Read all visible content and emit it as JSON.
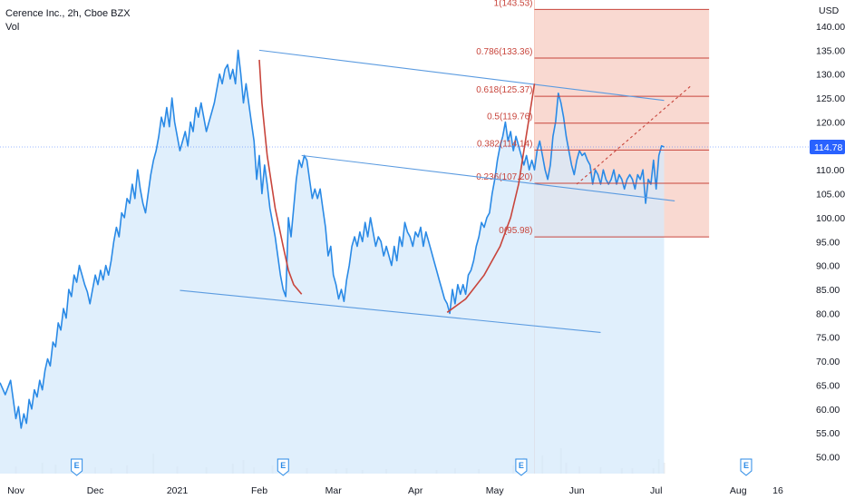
{
  "header": {
    "symbol_line": "Cerence Inc., 2h, Cboe BZX",
    "volume_label": "Vol"
  },
  "currency_label": "USD",
  "last_price_label": "114.78",
  "colors": {
    "price_line": "#2a8ae6",
    "area_fill": "#d6e9fb",
    "trend_lines": "#5b9be0",
    "cup_arc": "#c8453c",
    "fib_zone": "#f6c9bd",
    "fib_line": "#c8453c",
    "price_badge": "#2962ff",
    "volume_bar": "#ececec"
  },
  "chart_data": {
    "type": "line",
    "title": "Cerence Inc., 2h, Cboe BZX",
    "ylabel": "USD",
    "ylim": [
      46.5,
      145.5
    ],
    "y_ticks": [
      50,
      55,
      60,
      65,
      70,
      75,
      80,
      85,
      90,
      95,
      100,
      105,
      110,
      115,
      120,
      125,
      130,
      135,
      140
    ],
    "y_tick_labels": [
      "50.00",
      "55.00",
      "60.00",
      "65.00",
      "70.00",
      "75.00",
      "80.00",
      "85.00",
      "90.00",
      "95.00",
      "100.00",
      "105.00",
      "110.00",
      "115.00",
      "120.00",
      "125.00",
      "130.00",
      "135.00",
      "140.00"
    ],
    "x_ticks": [
      {
        "x": 0,
        "label": "Nov"
      },
      {
        "x": 30,
        "label": "Dec"
      },
      {
        "x": 61,
        "label": "2021"
      },
      {
        "x": 92,
        "label": "Feb"
      },
      {
        "x": 120,
        "label": "Mar"
      },
      {
        "x": 151,
        "label": "Apr"
      },
      {
        "x": 181,
        "label": "May"
      },
      {
        "x": 212,
        "label": "Jun"
      },
      {
        "x": 242,
        "label": "Jul"
      },
      {
        "x": 273,
        "label": "Aug"
      },
      {
        "x": 288,
        "label": "16"
      }
    ],
    "earnings_markers": [
      {
        "x": 23,
        "label": "E"
      },
      {
        "x": 101,
        "label": "E"
      },
      {
        "x": 191,
        "label": "E"
      },
      {
        "x": 276,
        "label": "E"
      }
    ],
    "series": [
      {
        "values": [
          [
            -6,
            65.5
          ],
          [
            -4,
            63
          ],
          [
            -2,
            66
          ],
          [
            0,
            58
          ],
          [
            1,
            60.5
          ],
          [
            2,
            56
          ],
          [
            3,
            59
          ],
          [
            4,
            57
          ],
          [
            5,
            62
          ],
          [
            6,
            60
          ],
          [
            7,
            64
          ],
          [
            8,
            62.5
          ],
          [
            9,
            66
          ],
          [
            10,
            64
          ],
          [
            11,
            68
          ],
          [
            12,
            70.5
          ],
          [
            13,
            69
          ],
          [
            14,
            74
          ],
          [
            15,
            73
          ],
          [
            16,
            78
          ],
          [
            17,
            76.5
          ],
          [
            18,
            81
          ],
          [
            19,
            79
          ],
          [
            20,
            85
          ],
          [
            21,
            83.5
          ],
          [
            22,
            88
          ],
          [
            23,
            86.5
          ],
          [
            24,
            90
          ],
          [
            25,
            88
          ],
          [
            26,
            86
          ],
          [
            27,
            84.5
          ],
          [
            28,
            82
          ],
          [
            29,
            85
          ],
          [
            30,
            88
          ],
          [
            31,
            86
          ],
          [
            32,
            89
          ],
          [
            33,
            87
          ],
          [
            34,
            90
          ],
          [
            35,
            88
          ],
          [
            36,
            91
          ],
          [
            37,
            95
          ],
          [
            38,
            98
          ],
          [
            39,
            96
          ],
          [
            40,
            101
          ],
          [
            41,
            100
          ],
          [
            42,
            104
          ],
          [
            43,
            103
          ],
          [
            44,
            107
          ],
          [
            45,
            104
          ],
          [
            46,
            110
          ],
          [
            47,
            106
          ],
          [
            48,
            103
          ],
          [
            49,
            101
          ],
          [
            50,
            105
          ],
          [
            51,
            109
          ],
          [
            52,
            112
          ],
          [
            53,
            114
          ],
          [
            54,
            117
          ],
          [
            55,
            121
          ],
          [
            56,
            119
          ],
          [
            57,
            123
          ],
          [
            58,
            119
          ],
          [
            59,
            125
          ],
          [
            60,
            120
          ],
          [
            61,
            117
          ],
          [
            62,
            114
          ],
          [
            63,
            116
          ],
          [
            64,
            118
          ],
          [
            65,
            115
          ],
          [
            66,
            120
          ],
          [
            67,
            118
          ],
          [
            68,
            123
          ],
          [
            69,
            121
          ],
          [
            70,
            124
          ],
          [
            71,
            121
          ],
          [
            72,
            118
          ],
          [
            73,
            120
          ],
          [
            74,
            122
          ],
          [
            75,
            124
          ],
          [
            76,
            127
          ],
          [
            77,
            130
          ],
          [
            78,
            128
          ],
          [
            79,
            131
          ],
          [
            80,
            132
          ],
          [
            81,
            129
          ],
          [
            82,
            131
          ],
          [
            83,
            128
          ],
          [
            84,
            135
          ],
          [
            85,
            130
          ],
          [
            86,
            124
          ],
          [
            87,
            128
          ],
          [
            88,
            124
          ],
          [
            89,
            120
          ],
          [
            90,
            116
          ],
          [
            91,
            108
          ],
          [
            92,
            113
          ],
          [
            93,
            105
          ],
          [
            94,
            111
          ],
          [
            95,
            107
          ],
          [
            96,
            102
          ],
          [
            97,
            99
          ],
          [
            98,
            96
          ],
          [
            99,
            92
          ],
          [
            100,
            88
          ],
          [
            101,
            85
          ],
          [
            102,
            83.5
          ],
          [
            103,
            100
          ],
          [
            104,
            96
          ],
          [
            105,
            102
          ],
          [
            106,
            108
          ],
          [
            107,
            112
          ],
          [
            108,
            110.5
          ],
          [
            109,
            113
          ],
          [
            110,
            112
          ],
          [
            111,
            108
          ],
          [
            112,
            104
          ],
          [
            113,
            106
          ],
          [
            114,
            104
          ],
          [
            115,
            106
          ],
          [
            116,
            102
          ],
          [
            117,
            98
          ],
          [
            118,
            92
          ],
          [
            119,
            94
          ],
          [
            120,
            88
          ],
          [
            121,
            86
          ],
          [
            122,
            83
          ],
          [
            123,
            85
          ],
          [
            124,
            82.5
          ],
          [
            125,
            87
          ],
          [
            126,
            90
          ],
          [
            127,
            94
          ],
          [
            128,
            96
          ],
          [
            129,
            94
          ],
          [
            130,
            97
          ],
          [
            131,
            95
          ],
          [
            132,
            99
          ],
          [
            133,
            96
          ],
          [
            134,
            100
          ],
          [
            135,
            97
          ],
          [
            136,
            94
          ],
          [
            137,
            96
          ],
          [
            138,
            95
          ],
          [
            139,
            92
          ],
          [
            140,
            94
          ],
          [
            141,
            92
          ],
          [
            142,
            90
          ],
          [
            143,
            94
          ],
          [
            144,
            91
          ],
          [
            145,
            96
          ],
          [
            146,
            94
          ],
          [
            147,
            99
          ],
          [
            148,
            97
          ],
          [
            149,
            96
          ],
          [
            150,
            94
          ],
          [
            151,
            97
          ],
          [
            152,
            96
          ],
          [
            153,
            98
          ],
          [
            154,
            94
          ],
          [
            155,
            97
          ],
          [
            156,
            95
          ],
          [
            157,
            93
          ],
          [
            158,
            91
          ],
          [
            159,
            89
          ],
          [
            160,
            87
          ],
          [
            161,
            85
          ],
          [
            162,
            83
          ],
          [
            163,
            82
          ],
          [
            164,
            80
          ],
          [
            165,
            85
          ],
          [
            166,
            82
          ],
          [
            167,
            86
          ],
          [
            168,
            84
          ],
          [
            169,
            86
          ],
          [
            170,
            84
          ],
          [
            171,
            88
          ],
          [
            172,
            89
          ],
          [
            173,
            91
          ],
          [
            174,
            94
          ],
          [
            175,
            96
          ],
          [
            176,
            99
          ],
          [
            177,
            98
          ],
          [
            178,
            100
          ],
          [
            179,
            101
          ],
          [
            180,
            105
          ],
          [
            181,
            108
          ],
          [
            182,
            112
          ],
          [
            183,
            115
          ],
          [
            184,
            117
          ],
          [
            185,
            120
          ],
          [
            186,
            116
          ],
          [
            187,
            118
          ],
          [
            188,
            114
          ],
          [
            189,
            117
          ],
          [
            190,
            115
          ],
          [
            191,
            113
          ],
          [
            192,
            111
          ],
          [
            193,
            113
          ],
          [
            194,
            110
          ],
          [
            195,
            112
          ],
          [
            196,
            110
          ],
          [
            197,
            114
          ],
          [
            198,
            116
          ],
          [
            199,
            113
          ],
          [
            200,
            110
          ],
          [
            201,
            108
          ],
          [
            202,
            111
          ],
          [
            203,
            117
          ],
          [
            204,
            120
          ],
          [
            205,
            126
          ],
          [
            206,
            124
          ],
          [
            207,
            121
          ],
          [
            208,
            117
          ],
          [
            209,
            114
          ],
          [
            210,
            111
          ],
          [
            211,
            109
          ],
          [
            212,
            112
          ],
          [
            213,
            114
          ],
          [
            214,
            113
          ],
          [
            215,
            113.5
          ],
          [
            216,
            112
          ],
          [
            217,
            111
          ],
          [
            218,
            107
          ],
          [
            219,
            110
          ],
          [
            220,
            109
          ],
          [
            221,
            107
          ],
          [
            222,
            110
          ],
          [
            223,
            108
          ],
          [
            224,
            107
          ],
          [
            225,
            108
          ],
          [
            226,
            110
          ],
          [
            227,
            107
          ],
          [
            228,
            109
          ],
          [
            229,
            108
          ],
          [
            230,
            106
          ],
          [
            231,
            108
          ],
          [
            232,
            109
          ],
          [
            233,
            108
          ],
          [
            234,
            106
          ],
          [
            235,
            109
          ],
          [
            236,
            108
          ],
          [
            237,
            110
          ],
          [
            238,
            103
          ],
          [
            239,
            108
          ],
          [
            240,
            107
          ],
          [
            241,
            112
          ],
          [
            242,
            106
          ],
          [
            243,
            113
          ],
          [
            244,
            115
          ],
          [
            245,
            114.78
          ]
        ]
      }
    ],
    "trend_lines": [
      {
        "from": [
          92,
          135
        ],
        "to": [
          245,
          124.5
        ]
      },
      {
        "from": [
          108,
          113
        ],
        "to": [
          249,
          103.5
        ]
      },
      {
        "from": [
          62,
          84.8
        ],
        "to": [
          221,
          76
        ]
      },
      {
        "from": [
          212,
          107
        ],
        "to": [
          255,
          127.5
        ],
        "dashed": true
      }
    ],
    "cup_arc_points": [
      [
        92,
        133
      ],
      [
        93,
        124
      ],
      [
        95,
        113
      ],
      [
        98,
        102
      ],
      [
        101,
        94
      ],
      [
        103,
        89
      ],
      [
        105,
        86
      ],
      [
        108,
        84
      ]
    ],
    "cup_arc_right_points": [
      [
        163,
        80.2
      ],
      [
        170,
        83
      ],
      [
        177,
        88
      ],
      [
        183,
        94
      ],
      [
        187,
        100
      ],
      [
        190,
        107
      ],
      [
        192,
        114
      ],
      [
        194,
        121
      ],
      [
        196,
        128
      ]
    ],
    "fibonacci": {
      "x_start": 196,
      "x_end": 262,
      "levels": [
        {
          "ratio": "0",
          "price": 95.98,
          "label": "0(95.98)"
        },
        {
          "ratio": "0.236",
          "price": 107.2,
          "label": "0.236(107.20)"
        },
        {
          "ratio": "0.382",
          "price": 114.14,
          "label": "0.382(114.14)"
        },
        {
          "ratio": "0.5",
          "price": 119.76,
          "label": "0.5(119.76)"
        },
        {
          "ratio": "0.618",
          "price": 125.37,
          "label": "0.618(125.37)"
        },
        {
          "ratio": "0.786",
          "price": 133.36,
          "label": "0.786(133.36)"
        },
        {
          "ratio": "1",
          "price": 143.53,
          "label": "1(143.53)"
        }
      ]
    },
    "volume": [
      [
        0,
        8
      ],
      [
        10,
        12
      ],
      [
        15,
        10
      ],
      [
        21,
        14
      ],
      [
        30,
        7
      ],
      [
        36,
        6
      ],
      [
        42,
        9
      ],
      [
        52,
        22
      ],
      [
        61,
        8
      ],
      [
        72,
        7
      ],
      [
        82,
        11
      ],
      [
        86,
        15
      ],
      [
        90,
        7
      ],
      [
        97,
        9
      ],
      [
        103,
        6
      ],
      [
        110,
        6
      ],
      [
        121,
        5
      ],
      [
        125,
        6
      ],
      [
        131,
        4
      ],
      [
        140,
        5
      ],
      [
        151,
        5
      ],
      [
        159,
        4
      ],
      [
        166,
        6
      ],
      [
        175,
        5
      ],
      [
        188,
        9
      ],
      [
        192,
        18
      ],
      [
        199,
        20
      ],
      [
        206,
        28
      ],
      [
        208,
        12
      ],
      [
        213,
        8
      ],
      [
        221,
        7
      ],
      [
        229,
        6
      ],
      [
        233,
        6
      ],
      [
        241,
        6
      ],
      [
        243,
        16
      ],
      [
        245,
        12
      ]
    ]
  }
}
